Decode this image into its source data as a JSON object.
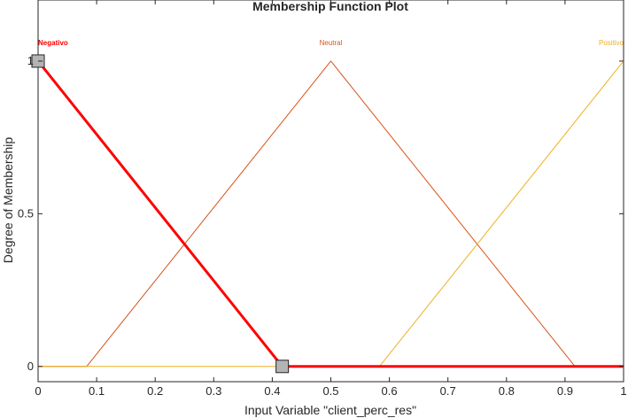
{
  "chart_data": {
    "type": "line",
    "title": "Membership Function Plot",
    "xlabel": "Input Variable \"client_perc_res\"",
    "ylabel": "Degree of Membership",
    "xlim": [
      0,
      1
    ],
    "ylim": [
      -0.05,
      1.2
    ],
    "x_ticks": [
      "0",
      "0.1",
      "0.2",
      "0.3",
      "0.4",
      "0.5",
      "0.6",
      "0.7",
      "0.8",
      "0.9",
      "1"
    ],
    "y_ticks": [
      "0",
      "0.5",
      "1"
    ],
    "grid": false,
    "series": [
      {
        "name": "Negativo",
        "color": "#ff0000",
        "selected": true,
        "x": [
          0,
          0.417,
          1
        ],
        "y": [
          1,
          0,
          0
        ]
      },
      {
        "name": "Neutral",
        "color": "#d95319",
        "selected": false,
        "x": [
          0,
          0.083,
          0.5,
          0.917,
          1
        ],
        "y": [
          0,
          0,
          1,
          0,
          0
        ]
      },
      {
        "name": "Positivo",
        "color": "#edb120",
        "selected": false,
        "x": [
          0,
          0.583,
          1
        ],
        "y": [
          0,
          0,
          1
        ]
      }
    ]
  }
}
